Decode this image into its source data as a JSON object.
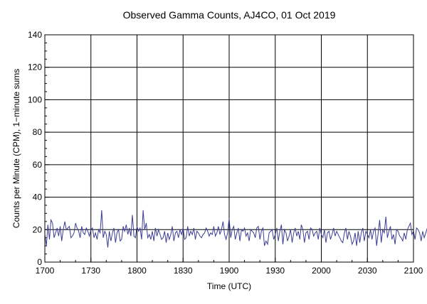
{
  "colors": {
    "background": "#ffffff",
    "grid": "#000000",
    "series": "#3c3c96"
  },
  "chart_data": {
    "type": "line",
    "title": "Observed Gamma Counts, AJ4CO, 01 Oct 2019",
    "xlabel": "Time (UTC)",
    "ylabel": "Counts per Minute (CPM), 1−minute sums",
    "xlim": [
      "17:00",
      "21:00"
    ],
    "ylim": [
      0,
      140
    ],
    "x_ticks": [
      "1700",
      "1730",
      "1800",
      "1830",
      "1900",
      "1930",
      "2000",
      "2030",
      "2100"
    ],
    "y_ticks": [
      "0",
      "20",
      "40",
      "60",
      "80",
      "100",
      "120",
      "140"
    ],
    "grid": true,
    "x_interval_minutes": 1,
    "series": [
      {
        "values": [
          17,
          10,
          23,
          14,
          26,
          24,
          15,
          18,
          21,
          16,
          22,
          13,
          20,
          25,
          20,
          21,
          22,
          15,
          16,
          18,
          24,
          21,
          19,
          15,
          22,
          18,
          17,
          21,
          19,
          16,
          20,
          21,
          15,
          18,
          14,
          20,
          18,
          32,
          15,
          19,
          17,
          9,
          19,
          13,
          18,
          21,
          12,
          18,
          20,
          13,
          14,
          22,
          19,
          23,
          17,
          21,
          16,
          29,
          16,
          15,
          22,
          19,
          21,
          14,
          32,
          20,
          24,
          15,
          17,
          14,
          19,
          13,
          21,
          16,
          20,
          17,
          14,
          15,
          19,
          12,
          18,
          14,
          17,
          22,
          13,
          18,
          19,
          15,
          20,
          17,
          21,
          14,
          15,
          22,
          16,
          19,
          17,
          21,
          14,
          19,
          18,
          16,
          15,
          17,
          18,
          21,
          19,
          16,
          18,
          17,
          22,
          16,
          18,
          22,
          17,
          20,
          25,
          17,
          14,
          18,
          27,
          15,
          20,
          22,
          14,
          18,
          21,
          13,
          20,
          19,
          21,
          16,
          18,
          13,
          20,
          19,
          18,
          15,
          21,
          22,
          14,
          19,
          21,
          10,
          13,
          11,
          18,
          19,
          20,
          14,
          17,
          21,
          13,
          19,
          23,
          11,
          20,
          18,
          13,
          16,
          20,
          12,
          18,
          21,
          16,
          19,
          14,
          23,
          20,
          12,
          18,
          19,
          14,
          21,
          20,
          16,
          18,
          19,
          14,
          21,
          17,
          15,
          20,
          12,
          18,
          19,
          14,
          17,
          21,
          16,
          19,
          17,
          15,
          13,
          12,
          18,
          21,
          14,
          19,
          16,
          11,
          13,
          18,
          10,
          19,
          12,
          18,
          21,
          13,
          19,
          17,
          15,
          20,
          14,
          19,
          21,
          10,
          18,
          26,
          12,
          20,
          18,
          28,
          15,
          19,
          22,
          14,
          17,
          11,
          20,
          19,
          16,
          15,
          13,
          18,
          14,
          20,
          22,
          24,
          17,
          19,
          14,
          21,
          20,
          18,
          13,
          19,
          15,
          18,
          21,
          14,
          23,
          16,
          19,
          14
        ]
      }
    ]
  }
}
